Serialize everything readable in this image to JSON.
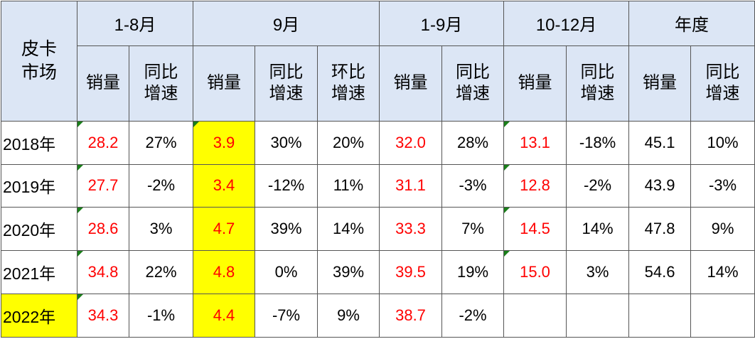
{
  "table": {
    "corner": "皮卡市场",
    "groups": [
      "1-8月",
      "9月",
      "1-9月",
      "10-12月",
      "年度"
    ],
    "subheaders": [
      "销量",
      "同比增速",
      "销量",
      "同比增速",
      "环比增速",
      "销量",
      "同比增速",
      "销量",
      "同比增速",
      "销量",
      "同比增速"
    ],
    "rows": [
      {
        "label": "2018年",
        "cells": [
          "28.2",
          "27%",
          "3.9",
          "30%",
          "20%",
          "32.0",
          "28%",
          "13.1",
          "-18%",
          "45.1",
          "10%"
        ]
      },
      {
        "label": "2019年",
        "cells": [
          "27.7",
          "-2%",
          "3.4",
          "-12%",
          "11%",
          "31.1",
          "-3%",
          "12.8",
          "-2%",
          "43.9",
          "-3%"
        ]
      },
      {
        "label": "2020年",
        "cells": [
          "28.6",
          "3%",
          "4.7",
          "39%",
          "14%",
          "33.3",
          "7%",
          "14.5",
          "14%",
          "47.8",
          "9%"
        ]
      },
      {
        "label": "2021年",
        "cells": [
          "34.8",
          "22%",
          "4.8",
          "0%",
          "39%",
          "39.5",
          "19%",
          "15.0",
          "3%",
          "54.6",
          "14%"
        ]
      },
      {
        "label": "2022年",
        "cells": [
          "34.3",
          "-1%",
          "4.4",
          "-7%",
          "9%",
          "38.7",
          "-2%",
          null,
          null,
          null,
          null
        ]
      }
    ]
  }
}
